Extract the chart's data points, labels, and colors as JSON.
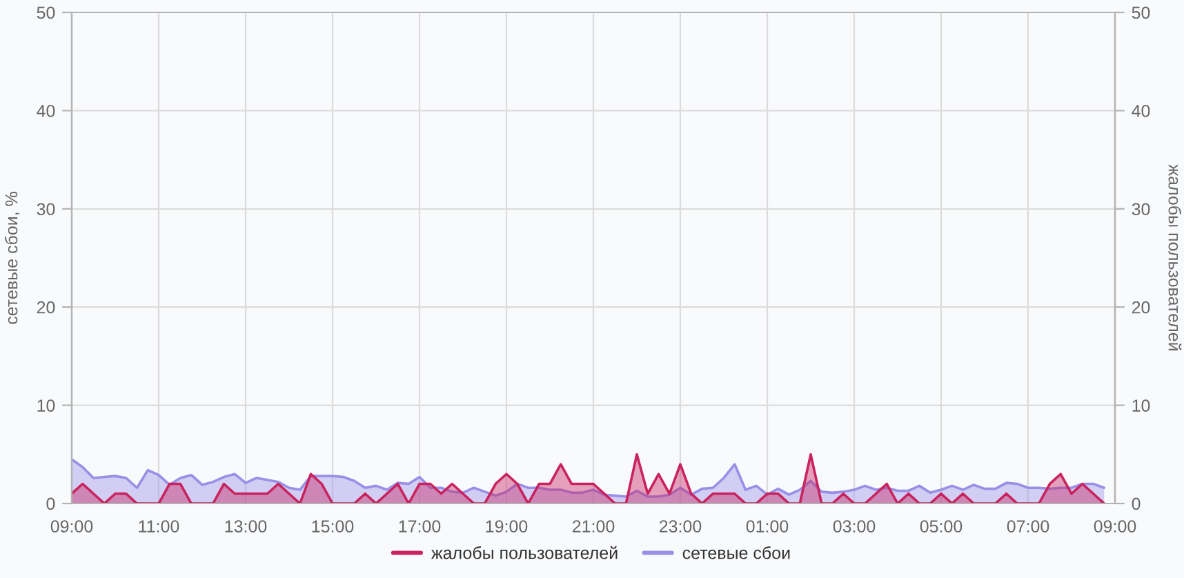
{
  "chart_data": {
    "type": "area",
    "categories": [
      "09:00",
      null,
      null,
      null,
      null,
      null,
      null,
      null,
      "11:00",
      null,
      null,
      null,
      null,
      null,
      null,
      null,
      "13:00",
      null,
      null,
      null,
      null,
      null,
      null,
      null,
      "15:00",
      null,
      null,
      null,
      null,
      null,
      null,
      null,
      "17:00",
      null,
      null,
      null,
      null,
      null,
      null,
      null,
      "19:00",
      null,
      null,
      null,
      null,
      null,
      null,
      null,
      "21:00",
      null,
      null,
      null,
      null,
      null,
      null,
      null,
      "23:00",
      null,
      null,
      null,
      null,
      null,
      null,
      null,
      "01:00",
      null,
      null,
      null,
      null,
      null,
      null,
      null,
      "03:00",
      null,
      null,
      null,
      null,
      null,
      null,
      null,
      "05:00",
      null,
      null,
      null,
      null,
      null,
      null,
      null,
      "07:00",
      null,
      null,
      null,
      null,
      null,
      null,
      null,
      "09:00"
    ],
    "ylim": [
      0,
      50
    ],
    "yticks": [
      0,
      10,
      20,
      30,
      40,
      50
    ],
    "y2lim": [
      0,
      50
    ],
    "y2ticks": [
      0,
      10,
      20,
      30,
      40,
      50
    ],
    "ylabel": "сетевые сбои, %",
    "y2label": "жалобы пользователей",
    "series": [
      {
        "name": "жалобы пользователей",
        "color": "#c8235f",
        "axis": "y2",
        "values": [
          1,
          2,
          1,
          0,
          1,
          1,
          0,
          0,
          0,
          2,
          2,
          0,
          0,
          0,
          2,
          1,
          1,
          1,
          1,
          2,
          1,
          0,
          3,
          2,
          0,
          0,
          0,
          1,
          0,
          1,
          2,
          0,
          2,
          2,
          1,
          2,
          1,
          0,
          0,
          2,
          3,
          2,
          0,
          2,
          2,
          4,
          2,
          2,
          2,
          1,
          0,
          0,
          5,
          1,
          3,
          1,
          4,
          1,
          0,
          1,
          1,
          1,
          0,
          0,
          1,
          1,
          0,
          0,
          5,
          0,
          0,
          1,
          0,
          0,
          1,
          2,
          0,
          1,
          0,
          0,
          1,
          0,
          1,
          0,
          0,
          0,
          1,
          0,
          0,
          0,
          2,
          3,
          1,
          2,
          1,
          0,
          null
        ]
      },
      {
        "name": "сетевые сбои",
        "color": "#9a8fe6",
        "axis": "y",
        "values": [
          4.5,
          3.7,
          2.6,
          2.7,
          2.8,
          2.6,
          1.6,
          3.4,
          2.9,
          1.9,
          2.6,
          2.9,
          1.9,
          2.2,
          2.7,
          3.0,
          2.1,
          2.6,
          2.4,
          2.2,
          1.6,
          1.4,
          2.8,
          2.8,
          2.8,
          2.7,
          2.3,
          1.6,
          1.8,
          1.4,
          2.1,
          2.0,
          2.7,
          1.6,
          1.6,
          1.2,
          1.1,
          1.6,
          1.2,
          0.8,
          1.2,
          2.0,
          1.6,
          1.6,
          1.4,
          1.4,
          1.1,
          1.1,
          1.4,
          0.9,
          0.8,
          0.7,
          1.3,
          0.7,
          0.7,
          0.9,
          1.6,
          0.9,
          1.5,
          1.6,
          2.6,
          4.0,
          1.4,
          1.8,
          0.9,
          1.5,
          0.9,
          1.4,
          2.3,
          1.2,
          1.1,
          1.2,
          1.4,
          1.8,
          1.4,
          1.6,
          1.3,
          1.3,
          1.8,
          1.1,
          1.4,
          1.8,
          1.4,
          1.9,
          1.5,
          1.5,
          2.1,
          2.0,
          1.6,
          1.6,
          1.5,
          1.6,
          1.6,
          2.0,
          2.0,
          1.6,
          null
        ]
      }
    ],
    "grid": true,
    "legend": "bottom"
  }
}
